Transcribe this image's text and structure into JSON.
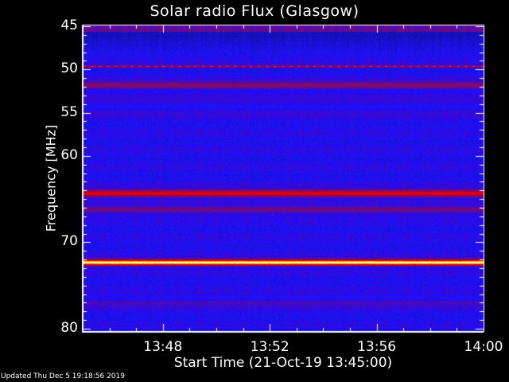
{
  "chart_data": {
    "type": "heatmap",
    "title": "Solar radio Flux (Glasgow)",
    "xlabel": "Start Time (21-Oct-19 13:45:00)",
    "ylabel": "Frequency [MHz]",
    "x_tick_labels": [
      "13:48",
      "13:52",
      "13:56",
      "14:00"
    ],
    "x_ticks_minutes_after_start": [
      3,
      7,
      11,
      15
    ],
    "xlim": [
      "13:45",
      "14:00"
    ],
    "y_tick_labels": [
      "45",
      "50",
      "55",
      "60",
      "70",
      "80"
    ],
    "y_ticks": [
      45,
      50,
      55,
      60,
      70,
      80
    ],
    "ylim": [
      45,
      80
    ],
    "y_inverted": true,
    "colormap": "blue-red-yellow-white",
    "background_color": "#1010f0",
    "features": [
      {
        "freq_mhz": 45.2,
        "intensity": 0.45
      },
      {
        "freq_mhz": 46.5,
        "intensity": 0.05
      },
      {
        "freq_mhz": 49.6,
        "intensity": 0.8,
        "pattern": "pulsed"
      },
      {
        "freq_mhz": 51.8,
        "intensity": 0.55
      },
      {
        "freq_mhz": 53.5,
        "intensity": 0.35
      },
      {
        "freq_mhz": 55.0,
        "intensity": 0.35
      },
      {
        "freq_mhz": 64.3,
        "intensity": 0.75
      },
      {
        "freq_mhz": 66.2,
        "intensity": 0.5
      },
      {
        "freq_mhz": 72.3,
        "intensity": 1.0
      },
      {
        "freq_mhz": 77.0,
        "intensity": 0.4
      }
    ]
  },
  "footer": {
    "updated": "Updated Thu Dec  5 19:18:56 2019"
  }
}
